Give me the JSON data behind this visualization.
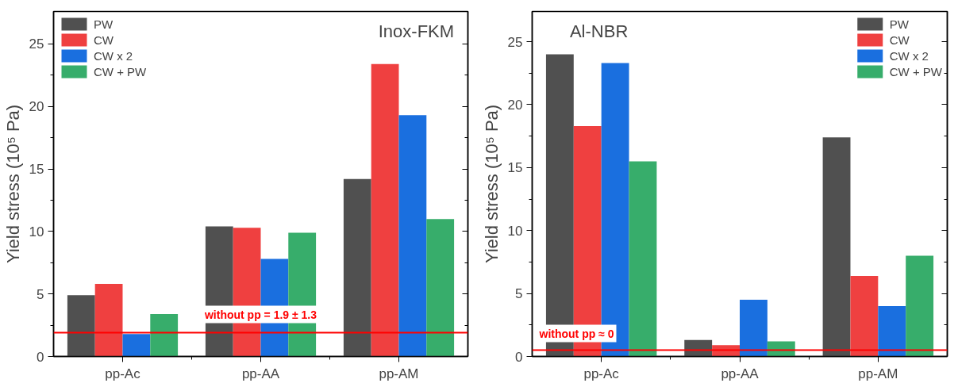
{
  "chart_data": [
    {
      "type": "bar",
      "title": "Inox-FKM",
      "ylabel": "Yield stress (10⁵ Pa)",
      "categories": [
        "pp-Ac",
        "pp-AA",
        "pp-AM"
      ],
      "series": [
        {
          "name": "PW",
          "color": "#505050",
          "values": [
            4.9,
            10.4,
            14.2
          ]
        },
        {
          "name": "CW",
          "color": "#ef4040",
          "values": [
            5.8,
            10.3,
            23.4
          ]
        },
        {
          "name": "CW x 2",
          "color": "#1a6fdf",
          "values": [
            1.8,
            7.8,
            19.3
          ]
        },
        {
          "name": "CW + PW",
          "color": "#37ad6b",
          "values": [
            3.4,
            9.9,
            11.0
          ]
        }
      ],
      "ylim": [
        0,
        27.6
      ],
      "yticks": [
        0,
        {
          "value": 2.5,
          "label": null
        },
        5,
        {
          "value": 7.5,
          "label": null
        },
        10,
        {
          "value": 12.5,
          "label": null
        },
        15,
        {
          "value": 17.5,
          "label": null
        },
        20,
        {
          "value": 22.5,
          "label": null
        },
        25
      ],
      "ref_lines": [
        {
          "axis": "y",
          "value": 1.9,
          "label": "without pp = 1.9 ± 1.3",
          "color": "#ff0000"
        }
      ],
      "legend": "top left",
      "grid": false
    },
    {
      "type": "bar",
      "title": "Al-NBR",
      "ylabel": "Yield stress (10⁵ Pa)",
      "categories": [
        "pp-Ac",
        "pp-AA",
        "pp-AM"
      ],
      "series": [
        {
          "name": "PW",
          "color": "#505050",
          "values": [
            24.0,
            1.3,
            17.4
          ]
        },
        {
          "name": "CW",
          "color": "#ef4040",
          "values": [
            18.3,
            0.9,
            6.4
          ]
        },
        {
          "name": "CW x 2",
          "color": "#1a6fdf",
          "values": [
            23.3,
            4.5,
            4.0
          ]
        },
        {
          "name": "CW + PW",
          "color": "#37ad6b",
          "values": [
            15.5,
            1.2,
            8.0
          ]
        }
      ],
      "ylim": [
        0,
        27.4
      ],
      "yticks": [
        0,
        {
          "value": 2.5,
          "label": null
        },
        5,
        {
          "value": 7.5,
          "label": null
        },
        10,
        {
          "value": 12.5,
          "label": null
        },
        15,
        {
          "value": 17.5,
          "label": null
        },
        20,
        {
          "value": 22.5,
          "label": null
        },
        25
      ],
      "ref_lines": [
        {
          "axis": "y",
          "value": 0.5,
          "label": "without pp ≈ 0",
          "color": "#ff0000"
        }
      ],
      "legend": "top right",
      "grid": false
    }
  ]
}
